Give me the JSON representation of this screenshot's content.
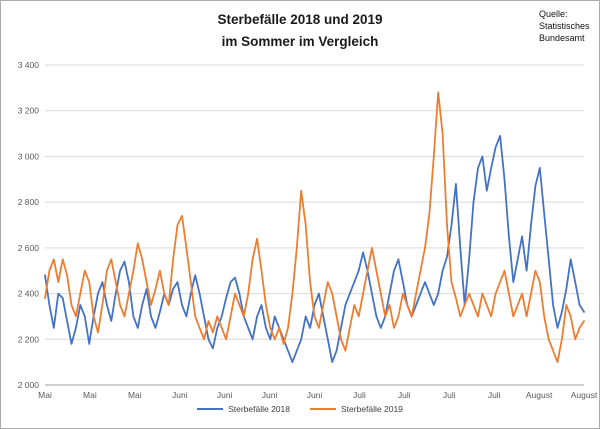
{
  "title": {
    "line1": "Sterbefälle 2018 und 2019",
    "line2": "im Sommer im Vergleich"
  },
  "source": {
    "lines": [
      "Quelle:",
      "Statistisches",
      "Bundesamt"
    ]
  },
  "legend": [
    {
      "label": "Sterbefälle 2018",
      "color": "#4472C4"
    },
    {
      "label": "Sterbefälle 2019",
      "color": "#ED7D31"
    }
  ],
  "chart_data": {
    "type": "line",
    "title": "Sterbefälle 2018 und 2019 im Sommer im Vergleich",
    "xlabel": "",
    "ylabel": "",
    "grid": true,
    "legend_position": "bottom",
    "x_axis": {
      "tick_labels": [
        "Mai",
        "Mai",
        "Mai",
        "Juni",
        "Juni",
        "Juni",
        "Juni",
        "Juli",
        "Juli",
        "Juli",
        "Juli",
        "August",
        "August"
      ]
    },
    "y_axis": {
      "min": 2000,
      "max": 3400,
      "step": 200,
      "tick_labels": [
        "2 000",
        "2 200",
        "2 400",
        "2 600",
        "2 800",
        "3 000",
        "3 200",
        "3 400"
      ]
    },
    "series": [
      {
        "name": "Sterbefälle 2018",
        "color": "#4472C4",
        "values": [
          2480,
          2350,
          2250,
          2400,
          2380,
          2280,
          2180,
          2250,
          2350,
          2300,
          2180,
          2300,
          2400,
          2450,
          2350,
          2280,
          2400,
          2500,
          2540,
          2450,
          2300,
          2250,
          2350,
          2420,
          2300,
          2250,
          2320,
          2400,
          2350,
          2420,
          2450,
          2350,
          2300,
          2400,
          2480,
          2400,
          2300,
          2200,
          2160,
          2250,
          2300,
          2380,
          2450,
          2470,
          2400,
          2300,
          2250,
          2200,
          2300,
          2350,
          2250,
          2200,
          2300,
          2250,
          2200,
          2150,
          2100,
          2150,
          2200,
          2300,
          2250,
          2350,
          2400,
          2300,
          2200,
          2100,
          2150,
          2250,
          2350,
          2400,
          2450,
          2500,
          2580,
          2500,
          2400,
          2300,
          2250,
          2300,
          2400,
          2500,
          2550,
          2450,
          2350,
          2300,
          2350,
          2400,
          2450,
          2400,
          2350,
          2400,
          2500,
          2560,
          2700,
          2880,
          2600,
          2350,
          2550,
          2800,
          2950,
          3000,
          2850,
          2950,
          3040,
          3090,
          2900,
          2650,
          2450,
          2550,
          2650,
          2500,
          2700,
          2870,
          2950,
          2750,
          2550,
          2350,
          2250,
          2320,
          2420,
          2550,
          2450,
          2350,
          2320
        ]
      },
      {
        "name": "Sterbefälle 2019",
        "color": "#ED7D31",
        "values": [
          2380,
          2500,
          2550,
          2450,
          2550,
          2480,
          2350,
          2300,
          2400,
          2500,
          2450,
          2300,
          2230,
          2350,
          2500,
          2550,
          2450,
          2350,
          2300,
          2400,
          2500,
          2620,
          2550,
          2450,
          2350,
          2420,
          2500,
          2400,
          2350,
          2550,
          2700,
          2740,
          2600,
          2450,
          2300,
          2250,
          2200,
          2280,
          2230,
          2300,
          2250,
          2200,
          2300,
          2400,
          2350,
          2300,
          2400,
          2550,
          2640,
          2500,
          2350,
          2250,
          2200,
          2250,
          2180,
          2250,
          2400,
          2600,
          2850,
          2700,
          2450,
          2300,
          2250,
          2350,
          2450,
          2400,
          2300,
          2200,
          2150,
          2250,
          2350,
          2300,
          2400,
          2500,
          2600,
          2500,
          2400,
          2300,
          2350,
          2250,
          2300,
          2400,
          2350,
          2300,
          2400,
          2500,
          2600,
          2750,
          3000,
          3280,
          3100,
          2700,
          2450,
          2380,
          2300,
          2350,
          2400,
          2350,
          2300,
          2400,
          2350,
          2300,
          2400,
          2450,
          2500,
          2400,
          2300,
          2350,
          2400,
          2300,
          2400,
          2500,
          2450,
          2300,
          2200,
          2150,
          2100,
          2200,
          2350,
          2300,
          2200,
          2250,
          2280
        ]
      }
    ]
  }
}
